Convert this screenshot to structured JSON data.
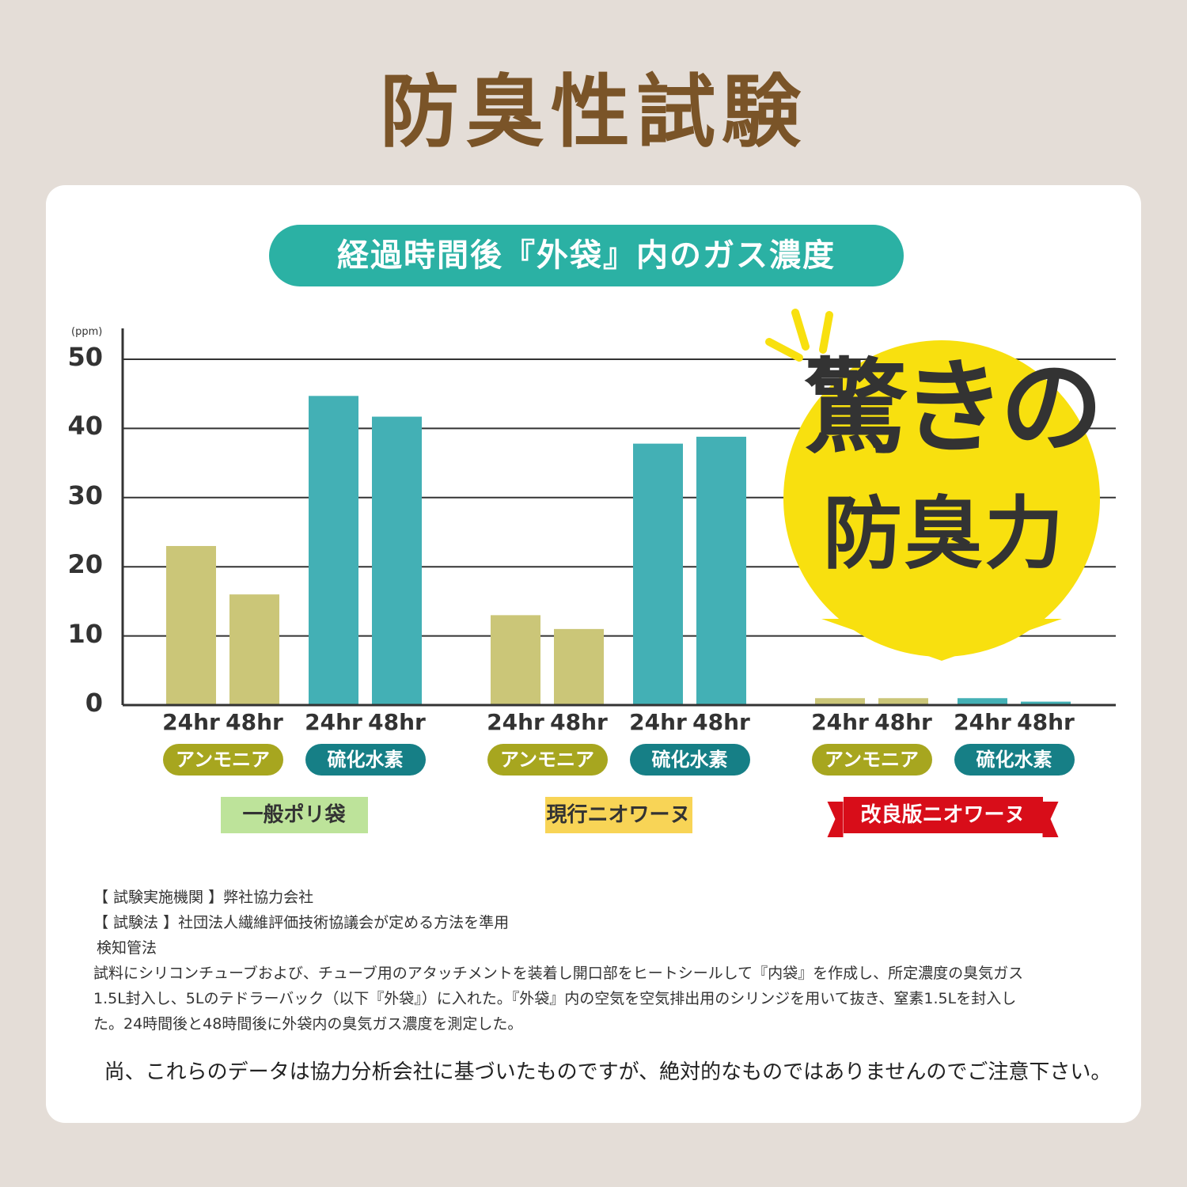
{
  "title": "防臭性試験",
  "chart_title": "経過時間後『外袋』内のガス濃度",
  "badge": {
    "line1": "驚きの",
    "line2": "防臭力"
  },
  "notes": {
    "institution": "【 試験実施機関 】弊社協力会社",
    "method": "【 試験法 】社団法人繊維評価技術協議会が定める方法を準用",
    "method_name": "検知管法",
    "desc1": "試料にシリコンチューブおよび、チューブ用のアタッチメントを装着し開口部をヒートシールして『内袋』を作成し、所定濃度の臭気ガス",
    "desc2": "1.5L封入し、5Lのテドラーバック（以下『外袋』）に入れた。『外袋』内の空気を空気排出用のシリンジを用いて抜き、窒素1.5Lを封入し",
    "desc3": "た。24時間後と48時間後に外袋内の臭気ガス濃度を測定した。"
  },
  "disclaimer": "尚、これらのデータは協力分析会社に基づいたものですが、絶対的なものではありませんのでご注意下さい。",
  "chart_data": {
    "type": "bar",
    "unit": "(ppm)",
    "ylim": [
      0,
      50
    ],
    "yticks": [
      0,
      10,
      20,
      30,
      40,
      50
    ],
    "grid": true,
    "groups": [
      {
        "name": "一般ポリ袋",
        "color": "#bde39a",
        "gases": [
          {
            "name": "アンモニア",
            "color": "#cbc678",
            "labels": [
              "24hr",
              "48hr"
            ],
            "values": [
              23,
              16
            ]
          },
          {
            "name": "硫化水素",
            "color": "#43b0b5",
            "labels": [
              "24hr",
              "48hr"
            ],
            "values": [
              44.7,
              41.7
            ]
          }
        ]
      },
      {
        "name": "現行ニオワーヌ",
        "color": "#f8d456",
        "gases": [
          {
            "name": "アンモニア",
            "color": "#cbc678",
            "labels": [
              "24hr",
              "48hr"
            ],
            "values": [
              13,
              11
            ]
          },
          {
            "name": "硫化水素",
            "color": "#43b0b5",
            "labels": [
              "24hr",
              "48hr"
            ],
            "values": [
              37.8,
              38.8
            ]
          }
        ]
      },
      {
        "name": "改良版ニオワーヌ",
        "color": "#d80d19",
        "gases": [
          {
            "name": "アンモニア",
            "color": "#cbc678",
            "labels": [
              "24hr",
              "48hr"
            ],
            "values": [
              1,
              1
            ]
          },
          {
            "name": "硫化水素",
            "color": "#43b0b5",
            "labels": [
              "24hr",
              "48hr"
            ],
            "values": [
              1,
              0.5
            ]
          }
        ]
      }
    ]
  }
}
